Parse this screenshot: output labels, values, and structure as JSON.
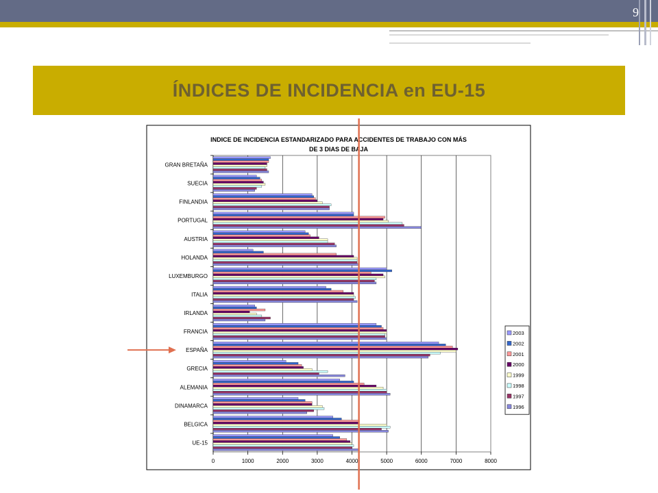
{
  "slide": {
    "page_number": "9",
    "title": "ÍNDICES DE INCIDENCIA  en EU-15"
  },
  "colors": {
    "header_bar": "#636b86",
    "gold": "#c9ad00",
    "title_text": "#6e6130",
    "marker_line": "#e07050",
    "arrow": "#e07050"
  },
  "chart_data": {
    "type": "bar",
    "orientation": "horizontal",
    "title_line1": "INDICE DE INCIDENCIA ESTANDARIZADO PARA ACCIDENTES DE TRABAJO CON MÁS",
    "title_line2": "DE 3 DIAS DE BAJA",
    "xlim": [
      0,
      8000
    ],
    "xticks": [
      "0",
      "1000",
      "2000",
      "3000",
      "4000",
      "5000",
      "6000",
      "7000",
      "8000"
    ],
    "grid": true,
    "legend_position": "right",
    "categories": [
      "GRAN BRETAÑA",
      "SUECIA",
      "FINLANDIA",
      "PORTUGAL",
      "AUSTRIA",
      "HOLANDA",
      "LUXEMBURGO",
      "ITALIA",
      "IRLANDA",
      "FRANCIA",
      "ESPAÑA",
      "GRECIA",
      "ALEMANIA",
      "DINAMARCA",
      "BELGICA",
      "UE-15"
    ],
    "highlighted_category": "ESPAÑA",
    "series": [
      {
        "name": "2003",
        "color": "#9999ff",
        "values": [
          1650,
          1250,
          2850,
          4050,
          2650,
          1150,
          5000,
          3250,
          1200,
          4700,
          6500,
          2100,
          3650,
          2450,
          3450,
          3450
        ]
      },
      {
        "name": "2002",
        "color": "#3366cc",
        "values": [
          1600,
          1350,
          2900,
          4050,
          2750,
          1450,
          5150,
          3400,
          1250,
          4850,
          6700,
          2450,
          4050,
          2650,
          3700,
          3650
        ]
      },
      {
        "name": "2001",
        "color": "#ff9999",
        "values": [
          1600,
          1400,
          2950,
          4950,
          2800,
          3550,
          4550,
          3750,
          1500,
          4900,
          6900,
          2550,
          4350,
          2850,
          4200,
          3850
        ]
      },
      {
        "name": "2000",
        "color": "#660066",
        "values": [
          1550,
          1450,
          3000,
          4900,
          3050,
          4050,
          4900,
          4050,
          1050,
          5000,
          7050,
          2600,
          4700,
          2850,
          4200,
          3950
        ]
      },
      {
        "name": "1999",
        "color": "#ffffcc",
        "values": [
          1550,
          1500,
          3150,
          5050,
          3300,
          4150,
          4950,
          4050,
          1250,
          5000,
          7000,
          2850,
          4900,
          3150,
          5000,
          4000
        ]
      },
      {
        "name": "1998",
        "color": "#ccffff",
        "values": [
          1500,
          1400,
          3400,
          5450,
          3300,
          4150,
          4700,
          4100,
          1400,
          4950,
          6550,
          3300,
          5000,
          3200,
          5100,
          4050
        ]
      },
      {
        "name": "1997",
        "color": "#993366",
        "values": [
          1550,
          1250,
          3350,
          5500,
          3500,
          4150,
          4650,
          4050,
          1650,
          4950,
          6250,
          3050,
          5000,
          2900,
          4850,
          4000
        ]
      },
      {
        "name": "1996",
        "color": "#8888dd",
        "values": [
          1600,
          1200,
          3350,
          6000,
          3550,
          4200,
          4700,
          4150,
          1500,
          5000,
          6200,
          3800,
          5100,
          2700,
          5050,
          4200
        ]
      }
    ],
    "marker_x": 4200
  }
}
